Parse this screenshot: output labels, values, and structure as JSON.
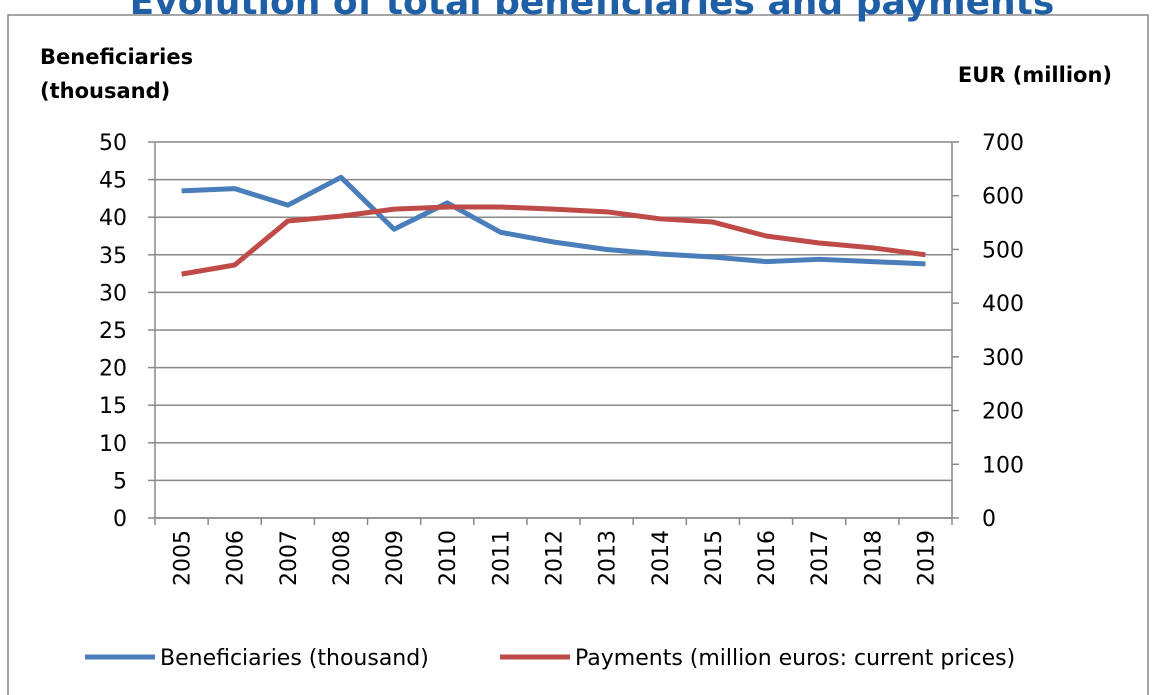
{
  "chart_data": {
    "type": "line",
    "title": "Evolution of total beneficiaries and payments",
    "y_label": "Beneficiaries (thousand)",
    "y2_label": "EUR (million)",
    "categories": [
      "2005",
      "2006",
      "2007",
      "2008",
      "2009",
      "2010",
      "2011",
      "2012",
      "2013",
      "2014",
      "2015",
      "2016",
      "2017",
      "2018",
      "2019"
    ],
    "series": [
      {
        "name": "Beneficiaries (thousand)",
        "color": "#4a7ebb",
        "values": [
          43.5,
          43.8,
          41.6,
          45.3,
          38.4,
          41.9,
          38.0,
          36.7,
          35.7,
          35.1,
          34.7,
          34.1,
          34.4,
          34.1,
          33.8
        ]
      },
      {
        "name": "Payments (million euros: current prices)",
        "color": "#be4b48",
        "axis": "y2",
        "values": [
          454,
          471,
          553,
          562,
          575,
          579,
          579,
          575,
          570,
          557,
          551,
          525,
          512,
          503,
          490
        ]
      }
    ],
    "ylim": [
      0,
      50
    ],
    "yticks": [
      0,
      5,
      10,
      15,
      20,
      25,
      30,
      35,
      40,
      45,
      50
    ],
    "y2lim": [
      0,
      700
    ],
    "y2ticks": [
      0,
      100,
      200,
      300,
      400,
      500,
      600,
      700
    ],
    "grid": true,
    "legend": "bottom"
  }
}
